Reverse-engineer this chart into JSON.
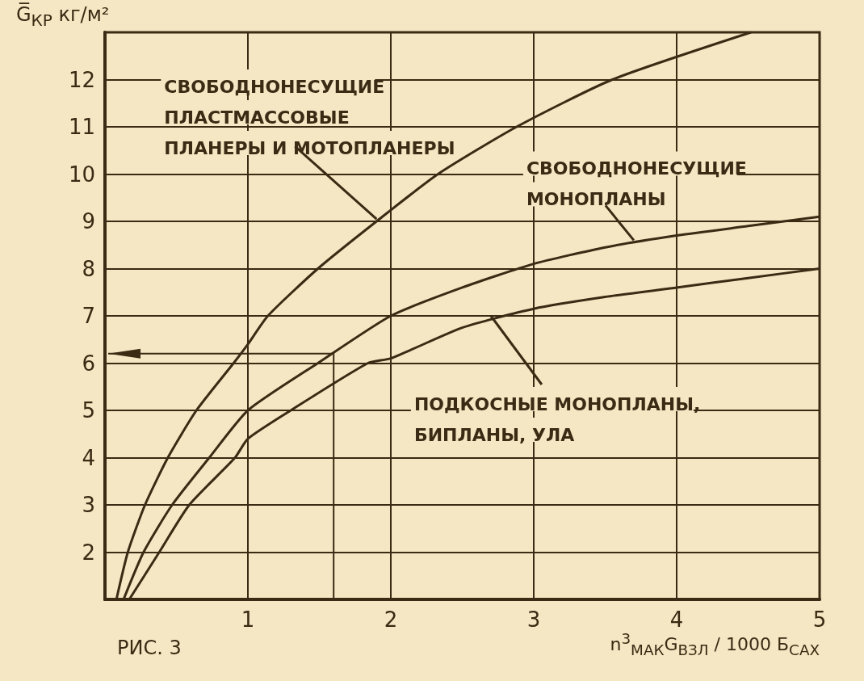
{
  "chart_data": {
    "type": "line",
    "ylabel": "G̅$_{КР}$ кг/м²",
    "xlabel": "n$^{3}$$_{МАК}$G$_{ВЗЛ}$ / 1000 Б$_{САХ}$",
    "x": [
      0.08,
      0.16,
      0.28,
      0.44,
      0.64,
      0.9,
      1.0,
      1.14,
      1.49,
      1.9,
      2.33,
      2.88,
      3.55,
      4.52
    ],
    "series": [
      {
        "color": "#3b2a14",
        "values": [
          1,
          2,
          3,
          4,
          5,
          6,
          6.4,
          7,
          8,
          9,
          10,
          11,
          12,
          13
        ]
      },
      {
        "color": "#3b2a14",
        "x": [
          0.13,
          0.27,
          0.47,
          0.73,
          1.0,
          1.49,
          2.0,
          2.5,
          3.0,
          3.5,
          4.0,
          4.5,
          5.0
        ],
        "values": [
          1,
          2,
          3,
          4,
          5,
          6,
          7,
          7.6,
          8.1,
          8.45,
          8.7,
          8.9,
          9.1
        ]
      },
      {
        "color": "#3b2a14",
        "x": [
          0.17,
          0.38,
          0.59,
          0.91,
          1.0,
          1.3,
          1.84,
          2.0,
          2.5,
          3.0,
          3.5,
          4.0,
          4.5,
          5.0
        ],
        "values": [
          1,
          2,
          3,
          4,
          4.4,
          5,
          6,
          6.1,
          6.75,
          7.15,
          7.4,
          7.6,
          7.8,
          8.0
        ]
      }
    ],
    "xlim": [
      0,
      5
    ],
    "xticks": [
      1,
      2,
      3,
      4,
      5
    ],
    "ylim": [
      1,
      13
    ],
    "yticks": [
      2,
      3,
      4,
      5,
      6,
      7,
      8,
      9,
      10,
      11,
      12
    ],
    "grid": true,
    "annotations": [
      {
        "text": "СВОБОДНОНЕСУЩИЕ\nПЛАСТМАССОВЫЕ\nПЛАНЕРЫ И МОТОПЛАНЕРЫ",
        "x": 1.9,
        "y": 9.05
      },
      {
        "text": "СВОБОДНОНЕСУЩИЕ\nМОНОПЛАНЫ",
        "x": 3.7,
        "y": 8.6
      },
      {
        "text": "ПОДКОСНЫЕ МОНОПЛАНЫ,\nБИПЛАНЫ, УЛА",
        "x": 2.7,
        "y": 7.0
      },
      "РИС. 3"
    ]
  }
}
